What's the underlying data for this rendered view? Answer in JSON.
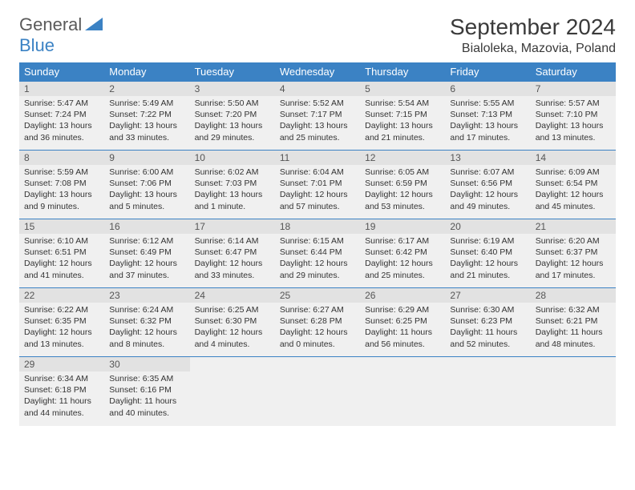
{
  "brand": {
    "part1": "General",
    "part2": "Blue"
  },
  "title": "September 2024",
  "location": "Bialoleka, Mazovia, Poland",
  "colors": {
    "header_bg": "#3b82c4",
    "header_text": "#ffffff",
    "cell_bg": "#f0f0f0",
    "daynum_bg": "#e2e2e2",
    "border": "#3b82c4",
    "text": "#333333",
    "logo_gray": "#5a5a5a",
    "logo_blue": "#3b82c4",
    "page_bg": "#ffffff"
  },
  "day_names": [
    "Sunday",
    "Monday",
    "Tuesday",
    "Wednesday",
    "Thursday",
    "Friday",
    "Saturday"
  ],
  "weeks": [
    [
      {
        "n": "1",
        "sr": "5:47 AM",
        "ss": "7:24 PM",
        "dl": "13 hours and 36 minutes."
      },
      {
        "n": "2",
        "sr": "5:49 AM",
        "ss": "7:22 PM",
        "dl": "13 hours and 33 minutes."
      },
      {
        "n": "3",
        "sr": "5:50 AM",
        "ss": "7:20 PM",
        "dl": "13 hours and 29 minutes."
      },
      {
        "n": "4",
        "sr": "5:52 AM",
        "ss": "7:17 PM",
        "dl": "13 hours and 25 minutes."
      },
      {
        "n": "5",
        "sr": "5:54 AM",
        "ss": "7:15 PM",
        "dl": "13 hours and 21 minutes."
      },
      {
        "n": "6",
        "sr": "5:55 AM",
        "ss": "7:13 PM",
        "dl": "13 hours and 17 minutes."
      },
      {
        "n": "7",
        "sr": "5:57 AM",
        "ss": "7:10 PM",
        "dl": "13 hours and 13 minutes."
      }
    ],
    [
      {
        "n": "8",
        "sr": "5:59 AM",
        "ss": "7:08 PM",
        "dl": "13 hours and 9 minutes."
      },
      {
        "n": "9",
        "sr": "6:00 AM",
        "ss": "7:06 PM",
        "dl": "13 hours and 5 minutes."
      },
      {
        "n": "10",
        "sr": "6:02 AM",
        "ss": "7:03 PM",
        "dl": "13 hours and 1 minute."
      },
      {
        "n": "11",
        "sr": "6:04 AM",
        "ss": "7:01 PM",
        "dl": "12 hours and 57 minutes."
      },
      {
        "n": "12",
        "sr": "6:05 AM",
        "ss": "6:59 PM",
        "dl": "12 hours and 53 minutes."
      },
      {
        "n": "13",
        "sr": "6:07 AM",
        "ss": "6:56 PM",
        "dl": "12 hours and 49 minutes."
      },
      {
        "n": "14",
        "sr": "6:09 AM",
        "ss": "6:54 PM",
        "dl": "12 hours and 45 minutes."
      }
    ],
    [
      {
        "n": "15",
        "sr": "6:10 AM",
        "ss": "6:51 PM",
        "dl": "12 hours and 41 minutes."
      },
      {
        "n": "16",
        "sr": "6:12 AM",
        "ss": "6:49 PM",
        "dl": "12 hours and 37 minutes."
      },
      {
        "n": "17",
        "sr": "6:14 AM",
        "ss": "6:47 PM",
        "dl": "12 hours and 33 minutes."
      },
      {
        "n": "18",
        "sr": "6:15 AM",
        "ss": "6:44 PM",
        "dl": "12 hours and 29 minutes."
      },
      {
        "n": "19",
        "sr": "6:17 AM",
        "ss": "6:42 PM",
        "dl": "12 hours and 25 minutes."
      },
      {
        "n": "20",
        "sr": "6:19 AM",
        "ss": "6:40 PM",
        "dl": "12 hours and 21 minutes."
      },
      {
        "n": "21",
        "sr": "6:20 AM",
        "ss": "6:37 PM",
        "dl": "12 hours and 17 minutes."
      }
    ],
    [
      {
        "n": "22",
        "sr": "6:22 AM",
        "ss": "6:35 PM",
        "dl": "12 hours and 13 minutes."
      },
      {
        "n": "23",
        "sr": "6:24 AM",
        "ss": "6:32 PM",
        "dl": "12 hours and 8 minutes."
      },
      {
        "n": "24",
        "sr": "6:25 AM",
        "ss": "6:30 PM",
        "dl": "12 hours and 4 minutes."
      },
      {
        "n": "25",
        "sr": "6:27 AM",
        "ss": "6:28 PM",
        "dl": "12 hours and 0 minutes."
      },
      {
        "n": "26",
        "sr": "6:29 AM",
        "ss": "6:25 PM",
        "dl": "11 hours and 56 minutes."
      },
      {
        "n": "27",
        "sr": "6:30 AM",
        "ss": "6:23 PM",
        "dl": "11 hours and 52 minutes."
      },
      {
        "n": "28",
        "sr": "6:32 AM",
        "ss": "6:21 PM",
        "dl": "11 hours and 48 minutes."
      }
    ],
    [
      {
        "n": "29",
        "sr": "6:34 AM",
        "ss": "6:18 PM",
        "dl": "11 hours and 44 minutes."
      },
      {
        "n": "30",
        "sr": "6:35 AM",
        "ss": "6:16 PM",
        "dl": "11 hours and 40 minutes."
      },
      null,
      null,
      null,
      null,
      null
    ]
  ],
  "labels": {
    "sunrise": "Sunrise: ",
    "sunset": "Sunset: ",
    "daylight": "Daylight: "
  }
}
